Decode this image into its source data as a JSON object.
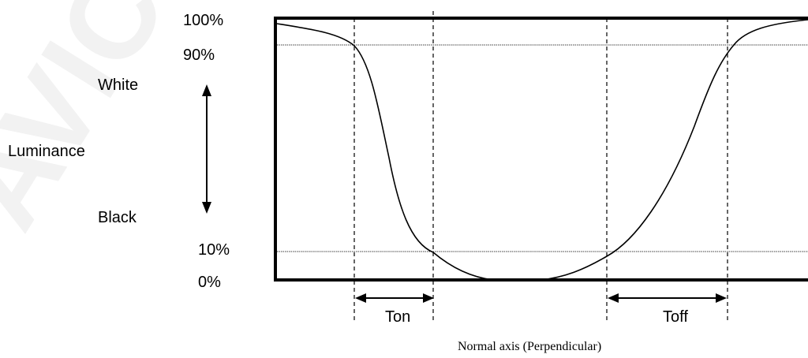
{
  "watermark": "AVIC",
  "levels": {
    "p100": "100%",
    "p90": "90%",
    "p10": "10%",
    "p0": "0%"
  },
  "axis": {
    "white_label": "White",
    "luminance_label": "Luminance",
    "black_label": "Black",
    "x_label": "Normal axis (Perpendicular)"
  },
  "intervals": {
    "ton": "Ton",
    "toff": "Toff"
  },
  "colors": {
    "line": "#000000",
    "watermark": "#f2f2f2"
  }
}
